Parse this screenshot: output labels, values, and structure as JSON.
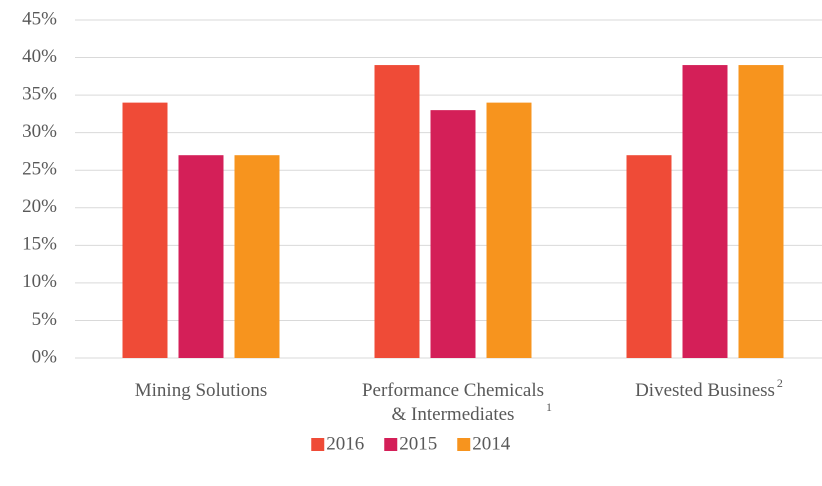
{
  "chart_data": {
    "type": "bar",
    "categories": [
      "Mining Solutions",
      "Performance Chemicals\n& Intermediates",
      "Divested Business"
    ],
    "category_notes": [
      null,
      "1",
      "2"
    ],
    "series": [
      {
        "name": "2016",
        "color": "#ef4b37",
        "values": [
          34,
          39,
          27
        ]
      },
      {
        "name": "2015",
        "color": "#d41f58",
        "values": [
          27,
          33,
          39
        ]
      },
      {
        "name": "2014",
        "color": "#f7941e",
        "values": [
          27,
          34,
          39
        ]
      }
    ],
    "ylim": [
      0,
      45
    ],
    "yticks": [
      {
        "value": 0,
        "label": "0%"
      },
      {
        "value": 5,
        "label": "5%"
      },
      {
        "value": 10,
        "label": "10%"
      },
      {
        "value": 15,
        "label": "15%"
      },
      {
        "value": 20,
        "label": "20%"
      },
      {
        "value": 25,
        "label": "25%"
      },
      {
        "value": 30,
        "label": "30%"
      },
      {
        "value": 35,
        "label": "35%"
      },
      {
        "value": 40,
        "label": "40%"
      },
      {
        "value": 45,
        "label": "45%"
      }
    ],
    "grid": true,
    "legend": "bottom"
  }
}
